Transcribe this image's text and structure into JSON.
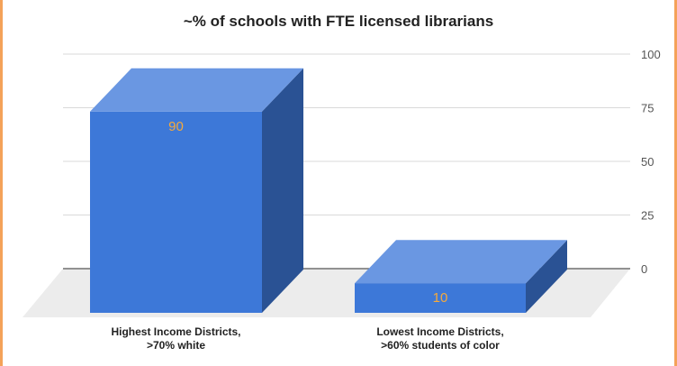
{
  "chart_data": {
    "type": "bar",
    "title": "~% of schools with FTE licensed librarians",
    "categories": [
      [
        "Highest Income Districts,",
        ">70% white"
      ],
      [
        "Lowest Income Districts,",
        ">60% students of color"
      ]
    ],
    "series": [
      {
        "values": [
          90,
          10
        ],
        "data_labels": [
          "90",
          "10"
        ]
      }
    ],
    "ylim": [
      0,
      100
    ],
    "yticks": [
      0,
      25,
      50,
      75,
      100
    ],
    "ytick_labels": [
      "0",
      "25",
      "50",
      "75",
      "100"
    ],
    "grid": true,
    "style": "3d",
    "colors": {
      "bar_front": "#3d78d8",
      "bar_top": "#6a97e2",
      "bar_side": "#2a5294",
      "floor": "#ececec",
      "data_label": "#f6a93b",
      "frame": "#f4a259"
    }
  }
}
